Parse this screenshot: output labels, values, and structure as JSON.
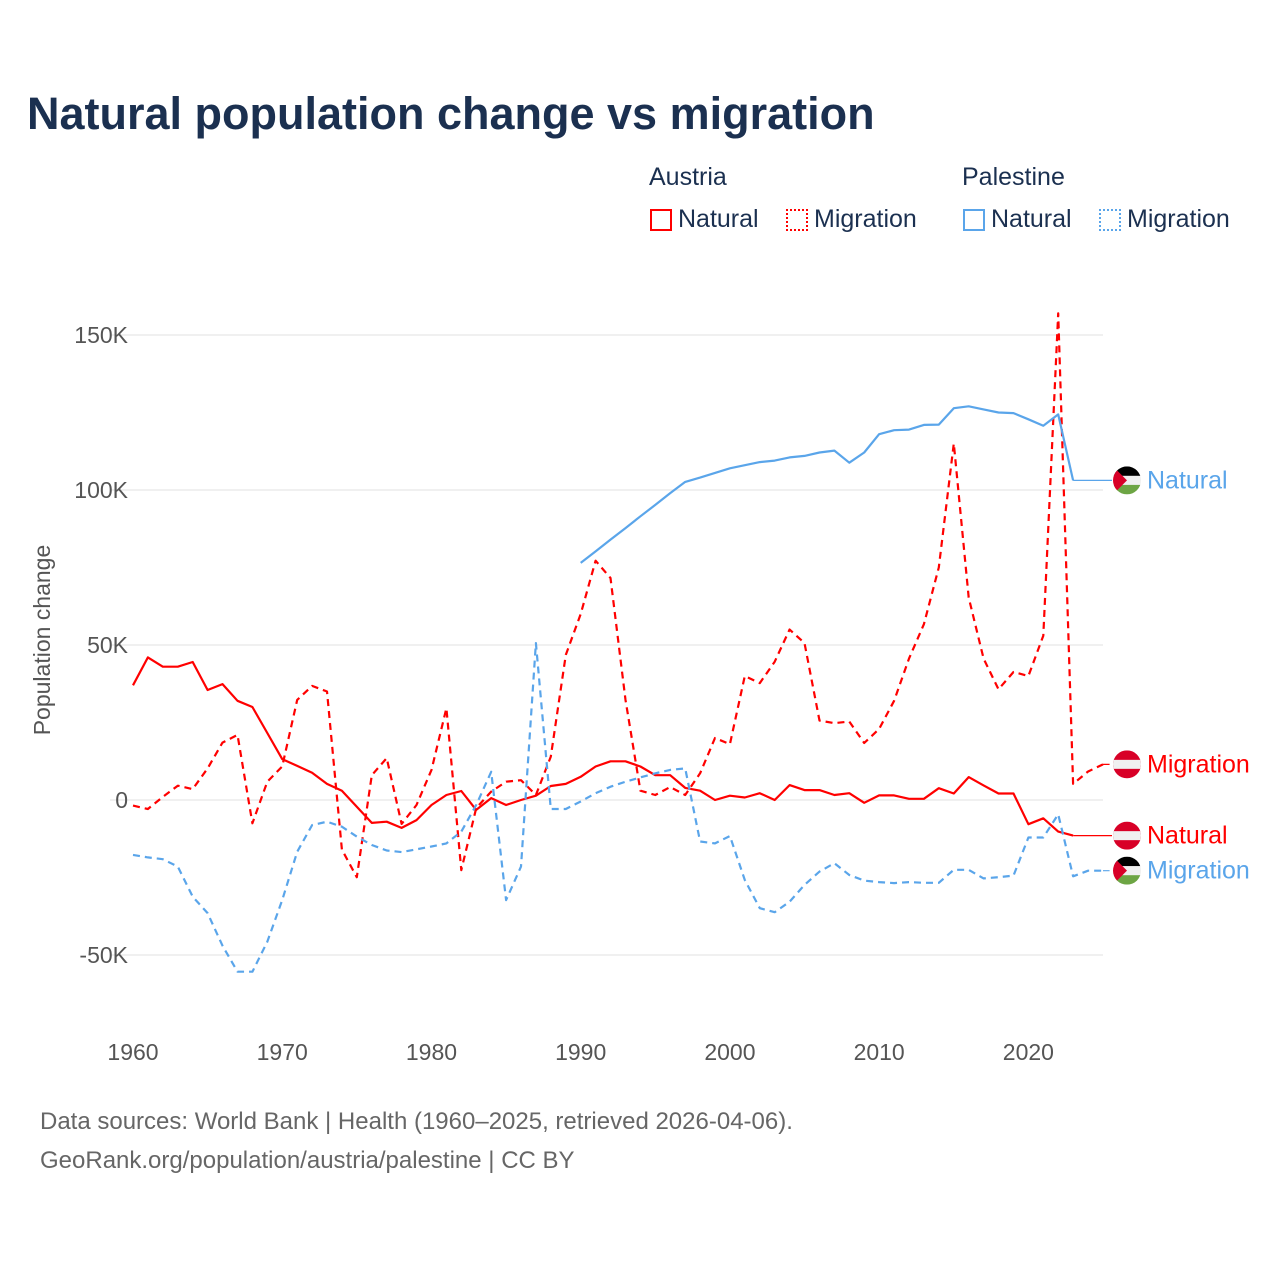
{
  "chart_data": {
    "type": "line",
    "title": "Natural population change vs migration",
    "ylabel": "Population change",
    "xlabel": "",
    "xlim": [
      1960,
      2025
    ],
    "ylim": [
      -60000,
      160000
    ],
    "x_ticks": [
      1960,
      1970,
      1980,
      1990,
      2000,
      2010,
      2020
    ],
    "x_tick_labels": [
      "1960",
      "1970",
      "1980",
      "1990",
      "2000",
      "2010",
      "2020"
    ],
    "y_ticks": [
      -50000,
      0,
      50000,
      100000,
      150000
    ],
    "y_tick_labels": [
      "-50K",
      "0",
      "50K",
      "100K",
      "150K"
    ],
    "grid": true,
    "legend": {
      "placement": "top-right",
      "groups": [
        {
          "name": "Austria",
          "items": [
            "Natural",
            "Migration"
          ]
        },
        {
          "name": "Palestine",
          "items": [
            "Natural",
            "Migration"
          ]
        }
      ]
    },
    "series": [
      {
        "country": "Austria",
        "name": "Natural",
        "color": "#ff0000",
        "dash": false,
        "flag": "austria",
        "start_year": 1960,
        "values": [
          37000,
          46000,
          43000,
          43000,
          44500,
          35500,
          37400,
          32000,
          30000,
          21600,
          13200,
          11000,
          8800,
          5200,
          3000,
          -2200,
          -7400,
          -7000,
          -9000,
          -6500,
          -1600,
          1600,
          2900,
          -3200,
          600,
          -1600,
          0,
          1400,
          4500,
          5200,
          7500,
          10800,
          12500,
          12500,
          10800,
          8000,
          8000,
          3900,
          3000,
          0,
          1400,
          800,
          2200,
          0,
          4800,
          3200,
          3200,
          1600,
          2200,
          -900,
          1500,
          1500,
          400,
          400,
          3800,
          2100,
          7400,
          4700,
          2100,
          2100,
          -7800,
          -5900,
          -10200,
          -11500
        ]
      },
      {
        "country": "Austria",
        "name": "Migration",
        "color": "#ff0000",
        "dash": true,
        "flag": "austria",
        "start_year": 1960,
        "values": [
          -1800,
          -2900,
          1000,
          4600,
          3500,
          10200,
          18500,
          21000,
          -7500,
          5900,
          10800,
          32300,
          36800,
          35000,
          -16000,
          -24900,
          8000,
          13500,
          -7700,
          -1600,
          9700,
          29600,
          -22600,
          -2600,
          2700,
          5900,
          6400,
          1600,
          14000,
          46800,
          60000,
          77200,
          71600,
          32300,
          3000,
          1600,
          4200,
          1600,
          8600,
          20000,
          18000,
          40000,
          37700,
          44600,
          55000,
          50600,
          25600,
          24800,
          25300,
          18400,
          22900,
          32000,
          45600,
          56700,
          75000,
          115000,
          65300,
          45600,
          35700,
          41300,
          40000,
          53000,
          157000,
          5200,
          9200,
          11500
        ]
      },
      {
        "country": "Palestine",
        "name": "Natural",
        "color": "#5aa5ea",
        "dash": false,
        "flag": "palestine",
        "start_year": 1990,
        "values": [
          76500,
          80200,
          84000,
          87700,
          91500,
          95200,
          99000,
          102600,
          104000,
          105500,
          107000,
          108000,
          109000,
          109500,
          110500,
          111000,
          112100,
          112700,
          108800,
          112100,
          118000,
          119300,
          119500,
          121000,
          121100,
          126400,
          127000,
          126000,
          125000,
          124800,
          122800,
          120700,
          124400,
          103100
        ]
      },
      {
        "country": "Palestine",
        "name": "Migration",
        "color": "#5aa5ea",
        "dash": true,
        "flag": "palestine",
        "start_year": 1960,
        "values": [
          -17700,
          -18500,
          -19100,
          -21500,
          -31200,
          -36500,
          -47000,
          -55400,
          -55400,
          -45700,
          -32300,
          -16700,
          -8100,
          -7000,
          -8600,
          -11800,
          -14500,
          -16300,
          -16800,
          -15900,
          -15000,
          -14000,
          -10200,
          -1600,
          9100,
          -32300,
          -21500,
          50600,
          -2900,
          -2900,
          -500,
          2200,
          4300,
          5900,
          7300,
          8600,
          9700,
          10200,
          -13400,
          -14000,
          -11600,
          -25800,
          -34900,
          -36200,
          -32800,
          -27400,
          -23100,
          -20400,
          -24200,
          -26000,
          -26500,
          -26800,
          -26500,
          -26700,
          -26700,
          -22500,
          -22500,
          -25300,
          -24900,
          -24400,
          -12100,
          -12100,
          -4600,
          -24600,
          -22800,
          -22800
        ]
      }
    ],
    "end_labels": [
      "Natural",
      "Migration",
      "Natural",
      "Migration"
    ]
  },
  "footer": {
    "line1": "Data sources: World Bank | Health (1960–2025, retrieved 2026-04-06).",
    "line2": "GeoRank.org/population/austria/palestine | CC BY"
  }
}
